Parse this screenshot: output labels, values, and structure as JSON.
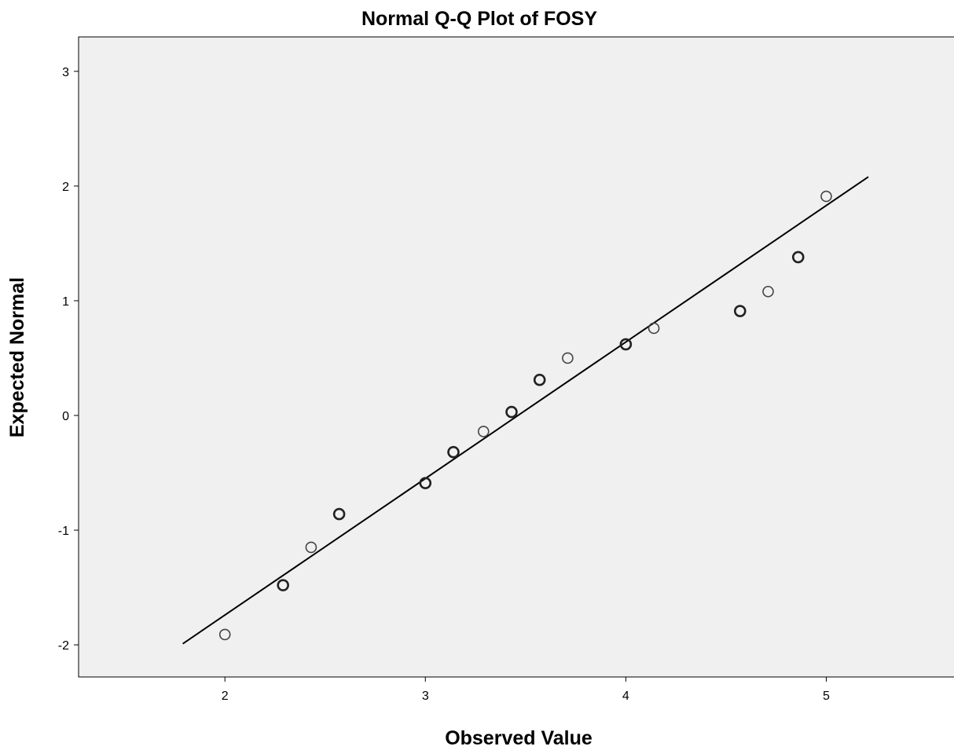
{
  "chart_data": {
    "type": "scatter",
    "title": "Normal Q-Q Plot of FOSY",
    "xlabel": "Observed Value",
    "ylabel": "Expected Normal",
    "xlim": [
      1.27,
      5.7
    ],
    "ylim": [
      -2.28,
      3.3
    ],
    "x_ticks": [
      2,
      3,
      4,
      5
    ],
    "y_ticks": [
      3,
      2,
      1,
      0,
      -1,
      -2
    ],
    "x_tick_labels": [
      "2",
      "3",
      "4",
      "5"
    ],
    "y_tick_labels": [
      "3",
      "2",
      "1",
      "0",
      "-1",
      "-2"
    ],
    "grid": false,
    "plot_background": "#f0f0f0",
    "reference_line": {
      "x": [
        1.79,
        5.21
      ],
      "y": [
        -1.99,
        2.08
      ]
    },
    "points": [
      {
        "x": 2.0,
        "y": -1.91,
        "bold": false
      },
      {
        "x": 2.29,
        "y": -1.48,
        "bold": true
      },
      {
        "x": 2.43,
        "y": -1.15,
        "bold": false
      },
      {
        "x": 2.57,
        "y": -0.86,
        "bold": true
      },
      {
        "x": 3.0,
        "y": -0.59,
        "bold": true
      },
      {
        "x": 3.14,
        "y": -0.32,
        "bold": true
      },
      {
        "x": 3.29,
        "y": -0.14,
        "bold": false
      },
      {
        "x": 3.43,
        "y": 0.03,
        "bold": true
      },
      {
        "x": 3.57,
        "y": 0.31,
        "bold": true
      },
      {
        "x": 3.71,
        "y": 0.5,
        "bold": false
      },
      {
        "x": 4.0,
        "y": 0.62,
        "bold": true
      },
      {
        "x": 4.14,
        "y": 0.76,
        "bold": false
      },
      {
        "x": 4.57,
        "y": 0.91,
        "bold": true
      },
      {
        "x": 4.71,
        "y": 1.08,
        "bold": false
      },
      {
        "x": 4.86,
        "y": 1.38,
        "bold": true
      },
      {
        "x": 5.0,
        "y": 1.91,
        "bold": false
      }
    ]
  }
}
